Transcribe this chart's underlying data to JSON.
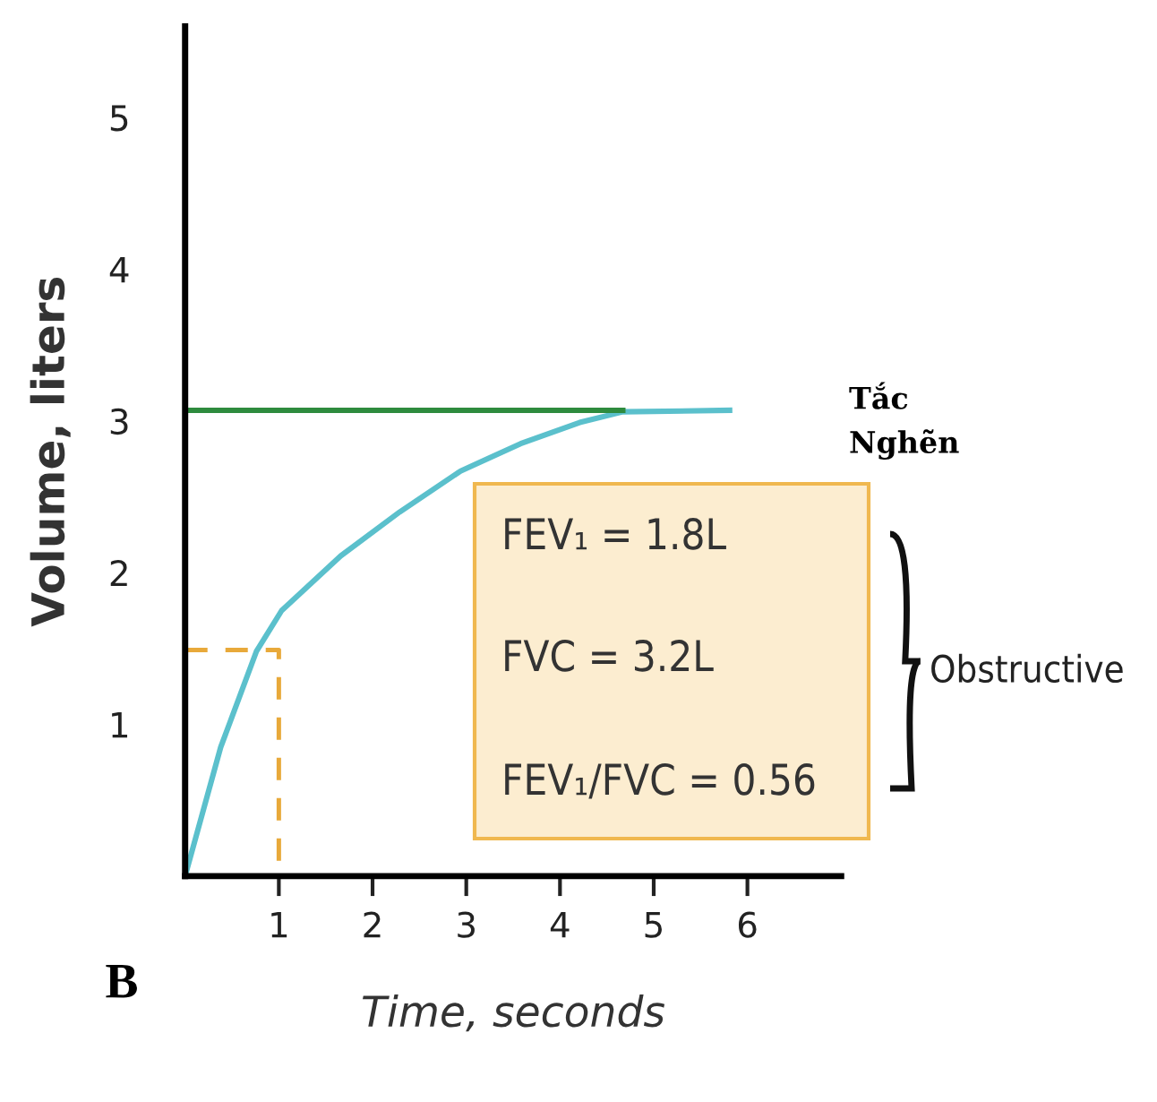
{
  "chart_data": {
    "type": "line",
    "xlabel": "Time, seconds",
    "ylabel": "Volume, liters",
    "series": [
      {
        "color": "#5bc0cc",
        "line_style": "solid",
        "x": [
          0,
          0.38,
          0.76,
          1.03,
          1.66,
          2.29,
          2.94,
          3.58,
          4.21,
          4.67,
          5.81
        ],
        "values": [
          0,
          0.85,
          1.48,
          1.75,
          2.11,
          2.4,
          2.67,
          2.85,
          2.99,
          3.06,
          3.07
        ]
      },
      {
        "color": "#2e8b3e",
        "line_style": "solid",
        "x": [
          0,
          4.67
        ],
        "values": [
          3.07,
          3.07
        ]
      },
      {
        "color": "#e8a93a",
        "line_style": "dashed",
        "x": [
          0,
          1,
          1
        ],
        "values": [
          1.49,
          1.49,
          0
        ]
      }
    ],
    "xlim": [
      0,
      7
    ],
    "ylim": [
      0,
      5.6
    ],
    "xticks": [
      1,
      2,
      3,
      4,
      5,
      6
    ],
    "yticks": [
      1,
      2,
      3,
      4,
      5
    ],
    "grid": false,
    "annotations": [
      "FEV₁ = 1.8L",
      "FVC = 3.2L",
      "FEV₁/FVC = 0.56",
      "Obstructive",
      "Tắc Nghẽn",
      "B"
    ]
  }
}
